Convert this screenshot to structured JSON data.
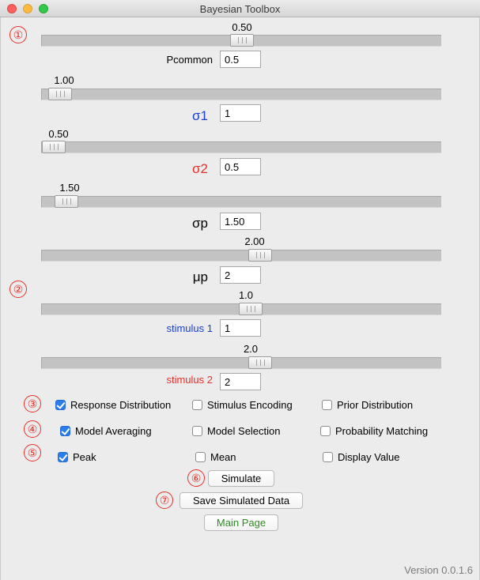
{
  "window": {
    "title": "Bayesian Toolbox"
  },
  "markers": {
    "m1": "①",
    "m2": "②",
    "m3": "③",
    "m4": "④",
    "m5": "⑤",
    "m6": "⑥",
    "m7": "⑦"
  },
  "sliders": {
    "pcommon": {
      "display": "0.50",
      "value": 0.5,
      "min": 0,
      "max": 1
    },
    "sigma1": {
      "display": "1.00",
      "value": 1.0,
      "min": 0.5,
      "max": 30
    },
    "sigma2": {
      "display": "0.50",
      "value": 0.5,
      "min": 0.5,
      "max": 30
    },
    "sigmap": {
      "display": "1.50",
      "value": 1.5,
      "min": 0.5,
      "max": 30
    },
    "mup": {
      "display": "2.00",
      "value": 2.0,
      "min": -20,
      "max": 20
    },
    "stim1": {
      "display": "1.0",
      "value": 1.0,
      "min": -20,
      "max": 20
    },
    "stim2": {
      "display": "2.0",
      "value": 2.0,
      "min": -20,
      "max": 20
    }
  },
  "labels": {
    "pcommon": "Pcommon",
    "sigma1": "σ1",
    "sigma2": "σ2",
    "sigmap": "σp",
    "mup": "μp",
    "stim1": "stimulus 1",
    "stim2": "stimulus 2"
  },
  "entries": {
    "pcommon": "0.5",
    "sigma1": "1",
    "sigma2": "0.5",
    "sigmap": "1.50",
    "mup": "2",
    "stim1": "1",
    "stim2": "2"
  },
  "checkboxes": {
    "response_distribution": {
      "label": "Response Distribution",
      "checked": true
    },
    "stimulus_encoding": {
      "label": "Stimulus Encoding",
      "checked": false
    },
    "prior_distribution": {
      "label": "Prior Distribution",
      "checked": false
    },
    "model_averaging": {
      "label": "Model Averaging",
      "checked": true
    },
    "model_selection": {
      "label": "Model Selection",
      "checked": false
    },
    "probability_matching": {
      "label": "Probability Matching",
      "checked": false
    },
    "peak": {
      "label": "Peak",
      "checked": true
    },
    "mean": {
      "label": "Mean",
      "checked": false
    },
    "display_value": {
      "label": "Display Value",
      "checked": false
    }
  },
  "buttons": {
    "simulate": "Simulate",
    "save": "Save Simulated Data",
    "main_page": "Main Page"
  },
  "footer": {
    "version": "Version 0.0.1.6"
  },
  "colors": {
    "sigma1": "#1a3fd1",
    "sigma2": "#e8302a",
    "stim1": "#1a3fd1",
    "stim2": "#e8302a",
    "main_page": "#2e8b22",
    "marker": "#e8302a",
    "checkbox_on": "#2b7de9"
  }
}
